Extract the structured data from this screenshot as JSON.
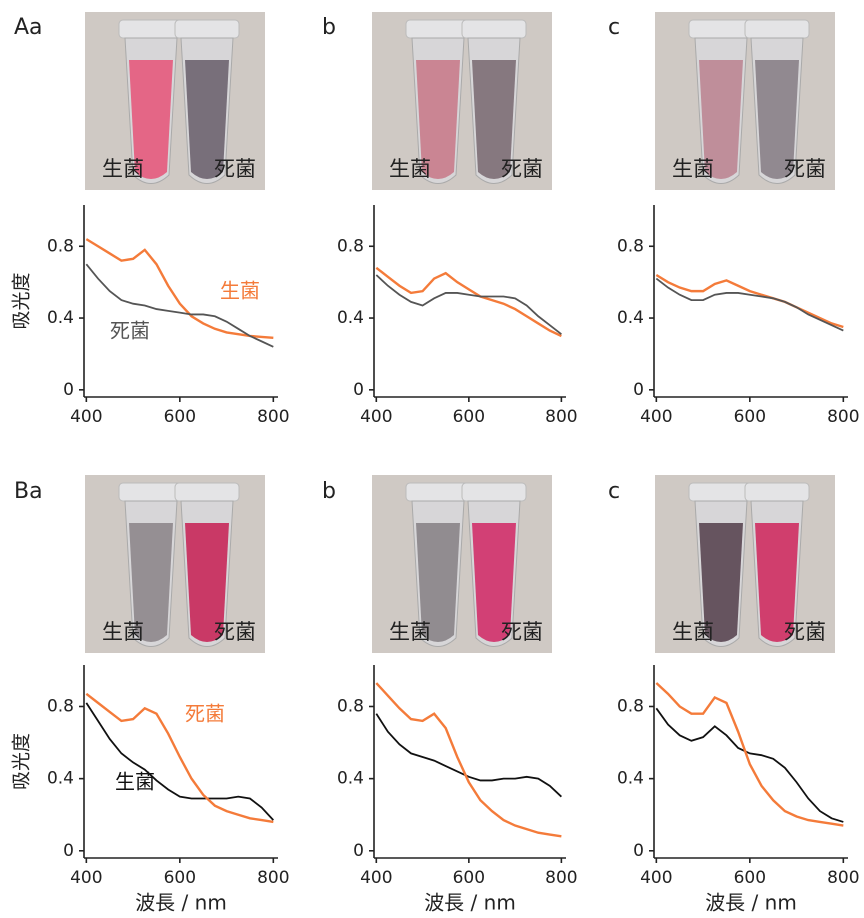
{
  "chart_data": [
    {
      "type": "line",
      "panel_label": "Aa",
      "photo_labels": [
        "生菌",
        "死菌"
      ],
      "ylabel": "吸光度",
      "x": [
        400,
        425,
        450,
        475,
        500,
        525,
        550,
        575,
        600,
        625,
        650,
        675,
        700,
        725,
        750,
        775,
        800
      ],
      "series": [
        {
          "name": "生菌",
          "color": "#f47b3a",
          "values": [
            0.84,
            0.8,
            0.76,
            0.72,
            0.73,
            0.78,
            0.7,
            0.58,
            0.48,
            0.41,
            0.37,
            0.34,
            0.32,
            0.31,
            0.3,
            0.295,
            0.29
          ]
        },
        {
          "name": "死菌",
          "color": "#555555",
          "values": [
            0.7,
            0.62,
            0.55,
            0.5,
            0.48,
            0.47,
            0.45,
            0.44,
            0.43,
            0.42,
            0.42,
            0.41,
            0.38,
            0.34,
            0.3,
            0.27,
            0.24
          ]
        }
      ],
      "xlim": [
        395,
        810
      ],
      "ylim": [
        -0.04,
        1.03
      ],
      "xticks": [
        400,
        600,
        800
      ],
      "yticks": [
        0,
        0.4,
        0.8
      ]
    },
    {
      "type": "line",
      "panel_label": "b",
      "photo_labels": [
        "生菌",
        "死菌"
      ],
      "x": [
        400,
        425,
        450,
        475,
        500,
        525,
        550,
        575,
        600,
        625,
        650,
        675,
        700,
        725,
        750,
        775,
        800
      ],
      "series": [
        {
          "color": "#f47b3a",
          "values": [
            0.68,
            0.63,
            0.58,
            0.54,
            0.55,
            0.62,
            0.65,
            0.6,
            0.56,
            0.52,
            0.5,
            0.48,
            0.45,
            0.41,
            0.37,
            0.33,
            0.3
          ]
        },
        {
          "color": "#555555",
          "values": [
            0.64,
            0.58,
            0.53,
            0.49,
            0.47,
            0.51,
            0.54,
            0.54,
            0.53,
            0.52,
            0.52,
            0.52,
            0.51,
            0.47,
            0.41,
            0.36,
            0.31
          ]
        }
      ],
      "xlim": [
        395,
        810
      ],
      "ylim": [
        -0.04,
        1.03
      ],
      "xticks": [
        400,
        600,
        800
      ],
      "yticks": [
        0,
        0.4,
        0.8
      ]
    },
    {
      "type": "line",
      "panel_label": "c",
      "photo_labels": [
        "生菌",
        "死菌"
      ],
      "x": [
        400,
        425,
        450,
        475,
        500,
        525,
        550,
        575,
        600,
        625,
        650,
        675,
        700,
        725,
        750,
        775,
        800
      ],
      "series": [
        {
          "color": "#f47b3a",
          "values": [
            0.64,
            0.6,
            0.57,
            0.55,
            0.55,
            0.59,
            0.61,
            0.58,
            0.55,
            0.53,
            0.51,
            0.49,
            0.46,
            0.43,
            0.4,
            0.37,
            0.35
          ]
        },
        {
          "color": "#555555",
          "values": [
            0.62,
            0.57,
            0.53,
            0.5,
            0.5,
            0.53,
            0.54,
            0.54,
            0.53,
            0.52,
            0.51,
            0.49,
            0.46,
            0.42,
            0.39,
            0.36,
            0.33
          ]
        }
      ],
      "xlim": [
        395,
        810
      ],
      "ylim": [
        -0.04,
        1.03
      ],
      "xticks": [
        400,
        600,
        800
      ],
      "yticks": [
        0,
        0.4,
        0.8
      ]
    },
    {
      "type": "line",
      "panel_label": "Ba",
      "photo_labels": [
        "生菌",
        "死菌"
      ],
      "ylabel": "吸光度",
      "xlabel": "波長 / nm",
      "x": [
        400,
        425,
        450,
        475,
        500,
        525,
        550,
        575,
        600,
        625,
        650,
        675,
        700,
        725,
        750,
        775,
        800
      ],
      "series": [
        {
          "name": "生菌",
          "color": "#111111",
          "values": [
            0.82,
            0.72,
            0.62,
            0.54,
            0.49,
            0.45,
            0.39,
            0.34,
            0.3,
            0.29,
            0.29,
            0.29,
            0.29,
            0.3,
            0.29,
            0.24,
            0.17
          ]
        },
        {
          "name": "死菌",
          "color": "#f47b3a",
          "values": [
            0.87,
            0.82,
            0.77,
            0.72,
            0.73,
            0.79,
            0.76,
            0.65,
            0.52,
            0.4,
            0.31,
            0.25,
            0.22,
            0.2,
            0.18,
            0.17,
            0.16
          ]
        }
      ],
      "xlim": [
        395,
        810
      ],
      "ylim": [
        -0.04,
        1.03
      ],
      "xticks": [
        400,
        600,
        800
      ],
      "yticks": [
        0,
        0.4,
        0.8
      ]
    },
    {
      "type": "line",
      "panel_label": "b",
      "photo_labels": [
        "生菌",
        "死菌"
      ],
      "xlabel": "波長 / nm",
      "x": [
        400,
        425,
        450,
        475,
        500,
        525,
        550,
        575,
        600,
        625,
        650,
        675,
        700,
        725,
        750,
        775,
        800
      ],
      "series": [
        {
          "color": "#111111",
          "values": [
            0.76,
            0.66,
            0.59,
            0.54,
            0.52,
            0.5,
            0.47,
            0.44,
            0.41,
            0.39,
            0.39,
            0.4,
            0.4,
            0.41,
            0.4,
            0.36,
            0.3
          ]
        },
        {
          "color": "#f47b3a",
          "values": [
            0.93,
            0.86,
            0.79,
            0.73,
            0.72,
            0.76,
            0.68,
            0.52,
            0.38,
            0.28,
            0.22,
            0.17,
            0.14,
            0.12,
            0.1,
            0.09,
            0.08
          ]
        }
      ],
      "xlim": [
        395,
        810
      ],
      "ylim": [
        -0.04,
        1.03
      ],
      "xticks": [
        400,
        600,
        800
      ],
      "yticks": [
        0,
        0.4,
        0.8
      ]
    },
    {
      "type": "line",
      "panel_label": "c",
      "photo_labels": [
        "生菌",
        "死菌"
      ],
      "xlabel": "波長 / nm",
      "x": [
        400,
        425,
        450,
        475,
        500,
        525,
        550,
        575,
        600,
        625,
        650,
        675,
        700,
        725,
        750,
        775,
        800
      ],
      "series": [
        {
          "color": "#111111",
          "values": [
            0.79,
            0.7,
            0.64,
            0.61,
            0.63,
            0.69,
            0.64,
            0.57,
            0.54,
            0.53,
            0.51,
            0.46,
            0.38,
            0.29,
            0.22,
            0.18,
            0.16
          ]
        },
        {
          "color": "#f47b3a",
          "values": [
            0.93,
            0.87,
            0.8,
            0.76,
            0.76,
            0.85,
            0.82,
            0.66,
            0.48,
            0.36,
            0.28,
            0.22,
            0.19,
            0.17,
            0.16,
            0.15,
            0.14
          ]
        }
      ],
      "xlim": [
        395,
        810
      ],
      "ylim": [
        -0.04,
        1.03
      ],
      "xticks": [
        400,
        600,
        800
      ],
      "yticks": [
        0,
        0.4,
        0.8
      ]
    }
  ]
}
